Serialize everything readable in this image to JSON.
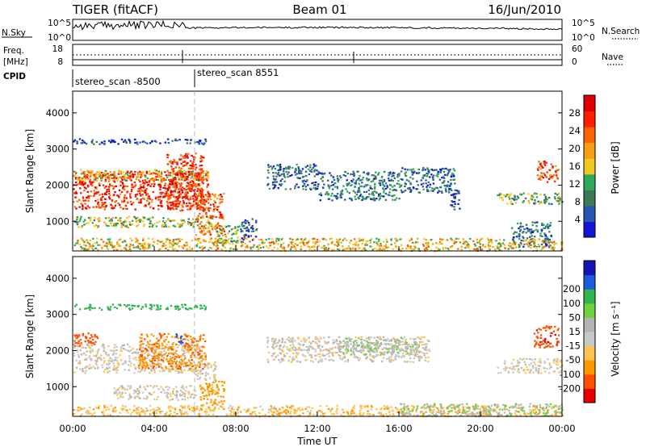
{
  "header": {
    "radar": "TIGER (fitACF)",
    "beam": "Beam 01",
    "date": "16/Jun/2010"
  },
  "control_panel": {
    "nsky_label": "N.Sky",
    "nsearch_label": "N.Search",
    "noise_ticks": [
      "10^5",
      "10^0"
    ],
    "freq_label": "Freq.",
    "freq_unit": "[MHz]",
    "freq_ticks": [
      "18",
      "8"
    ],
    "nave_label": "Nave",
    "nave_ticks": [
      "60",
      "0"
    ],
    "cpid_label": "CPID",
    "cpid_segments": [
      "stereo_scan -8500",
      "stereo_scan 8551"
    ]
  },
  "colors": {
    "power_scale": [
      "#1414d2",
      "#2856b4",
      "#3c7a55",
      "#2ea85a",
      "#f0c820",
      "#f5a014",
      "#ff6400",
      "#ff1e00",
      "#e10000"
    ],
    "velocity_scale": [
      "#e60000",
      "#ff5000",
      "#ff9600",
      "#ffc350",
      "#c8c8c8",
      "#b4b4b4",
      "#6ed23c",
      "#32b450",
      "#1e5adc",
      "#1414b4"
    ]
  },
  "chart_data": [
    {
      "type": "heatmap",
      "title": "",
      "xlabel": "Time UT",
      "ylabel": "Slant Range [km]",
      "xlim": [
        0,
        24
      ],
      "ylim": [
        180,
        4600
      ],
      "x_ticks": [
        "00:00",
        "04:00",
        "08:00",
        "12:00",
        "16:00",
        "20:00",
        "00:00"
      ],
      "y_ticks": [
        1000,
        2000,
        3000,
        4000
      ],
      "colorbar": {
        "label": "Power [dB]",
        "ticks": [
          4,
          8,
          12,
          16,
          20,
          24,
          28
        ],
        "range": [
          0,
          32
        ]
      },
      "regions": [
        {
          "t": [
            0.0,
            6.6
          ],
          "r": [
            1350,
            2400
          ],
          "value": 27
        },
        {
          "t": [
            0.0,
            6.6
          ],
          "r": [
            2150,
            2450
          ],
          "value": 18
        },
        {
          "t": [
            4.6,
            6.4
          ],
          "r": [
            1300,
            2900
          ],
          "value": 26
        },
        {
          "t": [
            6.0,
            7.4
          ],
          "r": [
            600,
            1800
          ],
          "value": 24
        },
        {
          "t": [
            7.0,
            8.2
          ],
          "r": [
            400,
            900
          ],
          "value": 12
        },
        {
          "t": [
            0.0,
            6.5
          ],
          "r": [
            3150,
            3300
          ],
          "value": 5
        },
        {
          "t": [
            0.0,
            7.0
          ],
          "r": [
            850,
            1150
          ],
          "value": 14
        },
        {
          "t": [
            8.2,
            9.0
          ],
          "r": [
            450,
            1100
          ],
          "value": 5
        },
        {
          "t": [
            9.5,
            12.0
          ],
          "r": [
            1900,
            2600
          ],
          "value": 6
        },
        {
          "t": [
            12.0,
            16.0
          ],
          "r": [
            1600,
            2400
          ],
          "value": 8
        },
        {
          "t": [
            16.0,
            18.7
          ],
          "r": [
            1800,
            2500
          ],
          "value": 7
        },
        {
          "t": [
            18.5,
            19.0
          ],
          "r": [
            1300,
            1900
          ],
          "value": 6
        },
        {
          "t": [
            20.8,
            24.0
          ],
          "r": [
            1500,
            1800
          ],
          "value": 12
        },
        {
          "t": [
            22.7,
            23.8
          ],
          "r": [
            2100,
            2700
          ],
          "value": 24
        },
        {
          "t": [
            21.5,
            23.5
          ],
          "r": [
            300,
            1000
          ],
          "value": 8
        },
        {
          "t": [
            0.0,
            24.0
          ],
          "r": [
            200,
            550
          ],
          "value": 18
        }
      ]
    },
    {
      "type": "heatmap",
      "title": "",
      "xlabel": "Time UT",
      "ylabel": "Slant Range [km]",
      "xlim": [
        0,
        24
      ],
      "ylim": [
        180,
        4600
      ],
      "x_ticks": [
        "00:00",
        "04:00",
        "08:00",
        "12:00",
        "16:00",
        "20:00",
        "00:00"
      ],
      "y_ticks": [
        1000,
        2000,
        3000,
        4000
      ],
      "colorbar": {
        "label": "Velocity [m s⁻¹]",
        "ticks": [
          -200,
          -100,
          -50,
          -15,
          15,
          50,
          100,
          200
        ],
        "tick_labels": [
          "-200",
          "-100",
          "-50",
          "-15",
          "15",
          "50",
          "100",
          "200"
        ]
      },
      "regions": [
        {
          "t": [
            0.0,
            6.2
          ],
          "r": [
            1400,
            2200
          ],
          "value": 0
        },
        {
          "t": [
            0.0,
            1.2
          ],
          "r": [
            2150,
            2500
          ],
          "value": -150
        },
        {
          "t": [
            3.2,
            6.5
          ],
          "r": [
            1500,
            2500
          ],
          "value": -90
        },
        {
          "t": [
            5.0,
            5.4
          ],
          "r": [
            2200,
            2500
          ],
          "value": 250
        },
        {
          "t": [
            6.2,
            7.4
          ],
          "r": [
            500,
            1200
          ],
          "value": -70
        },
        {
          "t": [
            6.0,
            7.0
          ],
          "r": [
            1200,
            1700
          ],
          "value": 0
        },
        {
          "t": [
            2.0,
            6.0
          ],
          "r": [
            650,
            1050
          ],
          "value": 0
        },
        {
          "t": [
            0.0,
            6.5
          ],
          "r": [
            3150,
            3300
          ],
          "value": 150
        },
        {
          "t": [
            9.5,
            17.5
          ],
          "r": [
            1700,
            2400
          ],
          "value": 0
        },
        {
          "t": [
            13.0,
            17.0
          ],
          "r": [
            1900,
            2400
          ],
          "value": 40
        },
        {
          "t": [
            20.8,
            24.0
          ],
          "r": [
            1400,
            1800
          ],
          "value": 0
        },
        {
          "t": [
            22.6,
            23.8
          ],
          "r": [
            2100,
            2700
          ],
          "value": -180
        },
        {
          "t": [
            0.0,
            24.0
          ],
          "r": [
            200,
            500
          ],
          "value": -40
        },
        {
          "t": [
            16.0,
            24.0
          ],
          "r": [
            200,
            550
          ],
          "value": 40
        }
      ]
    }
  ]
}
